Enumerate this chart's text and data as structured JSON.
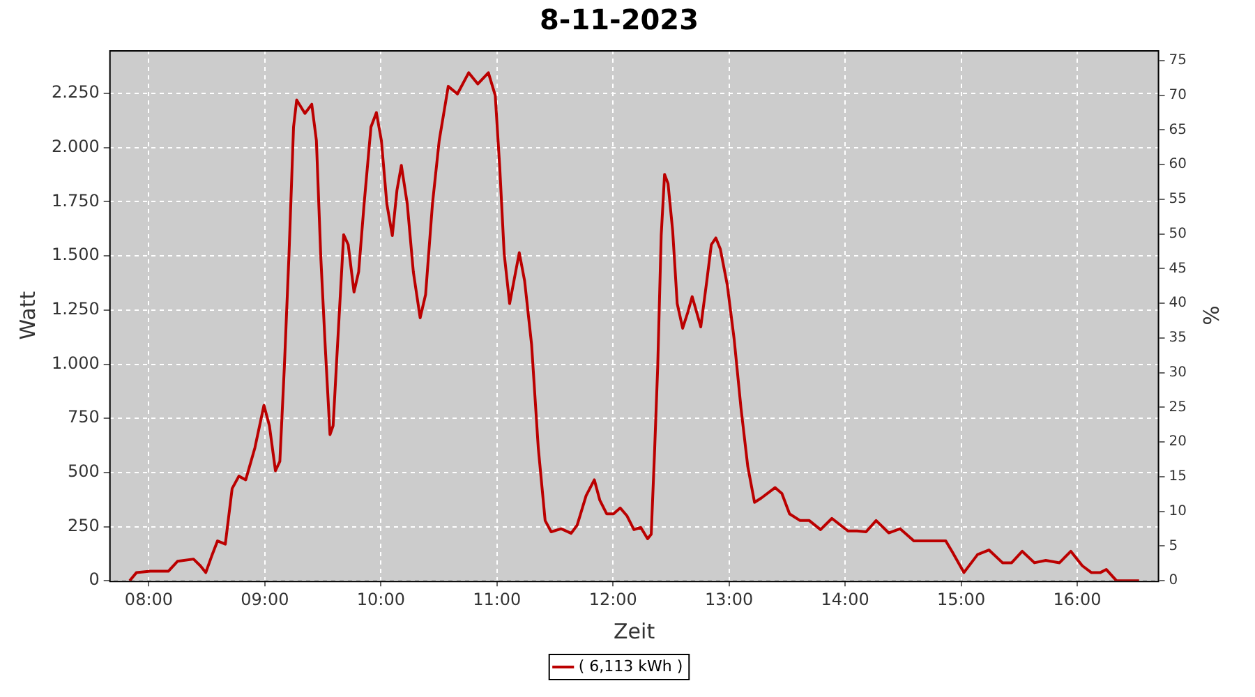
{
  "chart_data": {
    "type": "line",
    "title": "8-11-2023",
    "xlabel": "Zeit",
    "ylabel": "Watt",
    "y2label": "%",
    "x": [
      7.835,
      7.894,
      8.012,
      8.168,
      8.247,
      8.385,
      8.444,
      8.491,
      8.541,
      8.592,
      8.659,
      8.718,
      8.776,
      8.835,
      8.914,
      8.992,
      9.039,
      9.091,
      9.129,
      9.168,
      9.208,
      9.247,
      9.274,
      9.345,
      9.404,
      9.444,
      9.482,
      9.521,
      9.561,
      9.588,
      9.62,
      9.679,
      9.718,
      9.768,
      9.808,
      9.855,
      9.914,
      9.961,
      10.004,
      10.051,
      10.098,
      10.138,
      10.176,
      10.227,
      10.279,
      10.338,
      10.385,
      10.444,
      10.502,
      10.58,
      10.659,
      10.756,
      10.835,
      10.926,
      10.985,
      11.024,
      11.062,
      11.109,
      11.192,
      11.238,
      11.298,
      11.356,
      11.415,
      11.467,
      11.553,
      11.639,
      11.691,
      11.768,
      11.839,
      11.886,
      11.945,
      12.004,
      12.062,
      12.121,
      12.18,
      12.239,
      12.298,
      12.329,
      12.356,
      12.385,
      12.415,
      12.444,
      12.474,
      12.514,
      12.553,
      12.6,
      12.644,
      12.682,
      12.721,
      12.756,
      12.808,
      12.847,
      12.886,
      12.925,
      12.985,
      13.044,
      13.102,
      13.161,
      13.219,
      13.278,
      13.396,
      13.455,
      13.521,
      13.612,
      13.691,
      13.788,
      13.886,
      14.024,
      14.102,
      14.18,
      14.267,
      14.376,
      14.474,
      14.592,
      14.867,
      14.925,
      15.024,
      15.141,
      15.239,
      15.356,
      15.435,
      15.526,
      15.631,
      15.729,
      15.847,
      15.945,
      16.044,
      16.121,
      16.2,
      16.251,
      16.338,
      16.533
    ],
    "series": [
      {
        "name": "( 6,113 kWh )",
        "color": "#bb0000",
        "values": [
          0,
          38,
          44,
          44,
          90,
          100,
          69,
          38,
          113,
          184,
          169,
          426,
          483,
          466,
          614,
          810,
          716,
          508,
          551,
          990,
          1510,
          2095,
          2220,
          2158,
          2200,
          2032,
          1492,
          1072,
          675,
          716,
          1030,
          1598,
          1552,
          1333,
          1427,
          1740,
          2095,
          2162,
          2032,
          1740,
          1594,
          1803,
          1918,
          1740,
          1427,
          1214,
          1322,
          1740,
          2032,
          2283,
          2248,
          2346,
          2294,
          2346,
          2241,
          1907,
          1510,
          1280,
          1515,
          1385,
          1092,
          612,
          278,
          226,
          240,
          219,
          257,
          393,
          466,
          372,
          309,
          309,
          336,
          299,
          236,
          246,
          194,
          215,
          570,
          988,
          1594,
          1876,
          1834,
          1615,
          1280,
          1166,
          1239,
          1312,
          1239,
          1172,
          1385,
          1552,
          1583,
          1531,
          1364,
          1114,
          800,
          528,
          362,
          382,
          430,
          403,
          309,
          278,
          278,
          236,
          288,
          230,
          230,
          226,
          278,
          221,
          240,
          184,
          184,
          132,
          38,
          121,
          142,
          83,
          83,
          136,
          83,
          94,
          83,
          136,
          69,
          38,
          38,
          52,
          0,
          0
        ]
      }
    ],
    "xlim": [
      7.659,
      16.706
    ],
    "xticks": [
      {
        "value": 8,
        "label": "08:00"
      },
      {
        "value": 9,
        "label": "09:00"
      },
      {
        "value": 10,
        "label": "10:00"
      },
      {
        "value": 11,
        "label": "11:00"
      },
      {
        "value": 12,
        "label": "12:00"
      },
      {
        "value": 13,
        "label": "13:00"
      },
      {
        "value": 14,
        "label": "14:00"
      },
      {
        "value": 15,
        "label": "15:00"
      },
      {
        "value": 16,
        "label": "16:00"
      }
    ],
    "ylim": [
      0,
      2450
    ],
    "yticks": [
      0,
      250,
      500,
      750,
      {
        "value": 1000,
        "label": "1.000"
      },
      {
        "value": 1250,
        "label": "1.250"
      },
      {
        "value": 1500,
        "label": "1.500"
      },
      {
        "value": 1750,
        "label": "1.750"
      },
      {
        "value": 2000,
        "label": "2.000"
      },
      {
        "value": 2250,
        "label": "2.250"
      }
    ],
    "y2lim": [
      0,
      76.5
    ],
    "y2ticks": [
      0,
      5,
      10,
      15,
      20,
      25,
      30,
      35,
      40,
      45,
      50,
      55,
      60,
      65,
      70,
      75
    ],
    "grid": true,
    "legend": "bottom",
    "line_style": "solid"
  }
}
